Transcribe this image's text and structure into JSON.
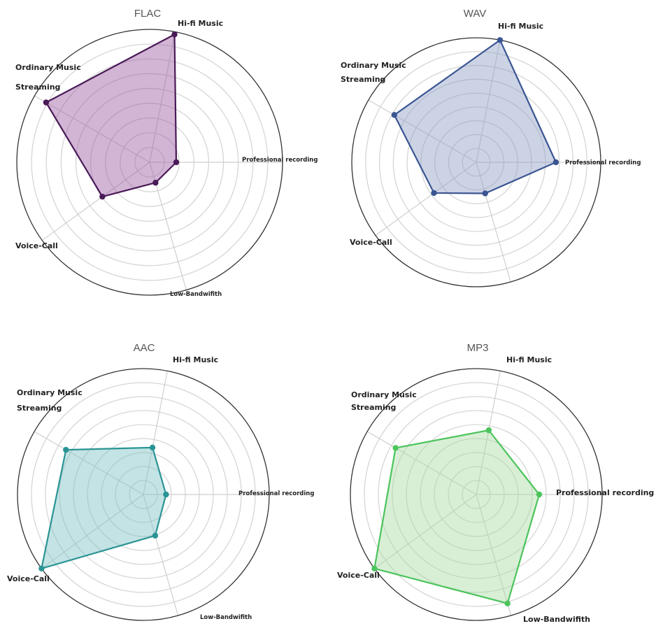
{
  "chart_data": [
    {
      "type": "radar",
      "title": "FLAC",
      "axes": [
        "Professional recording",
        "Hi-fi Music",
        "Ordinary Music Streaming",
        "Voice-Call",
        "Low-Bandwifith"
      ],
      "rlim": [
        0,
        10
      ],
      "rings": 8,
      "values": [
        2.0,
        9.8,
        9.0,
        4.4,
        1.6
      ],
      "color": "#4a1a58",
      "fill": "#9b5aa0"
    },
    {
      "type": "radar",
      "title": "WAV",
      "axes": [
        "Professional recording",
        "Hi-fi Music",
        "Ordinary Music Streaming",
        "Voice-Call",
        "Low-Bandwifith"
      ],
      "rlim": [
        0,
        10
      ],
      "rings": 8,
      "values": [
        6.4,
        10.0,
        7.6,
        4.2,
        2.6
      ],
      "color": "#3a5592",
      "fill": "#8d9ec6"
    },
    {
      "type": "radar",
      "title": "AAC",
      "axes": [
        "Professional recording",
        "Hi-fi Music",
        "Ordinary Music Streaming",
        "Voice-Call",
        "Low-Bandwifith"
      ],
      "rlim": [
        0,
        10
      ],
      "rings": 8,
      "values": [
        1.8,
        3.8,
        7.1,
        10.0,
        3.4
      ],
      "color": "#2a9494",
      "fill": "#7cc1c6"
    },
    {
      "type": "radar",
      "title": "MP3",
      "axes": [
        "Professional recording",
        "Hi-fi Music",
        "Ordinary Music Streaming",
        "Voice-Call",
        "Low-Bandwifith"
      ],
      "rlim": [
        0,
        10
      ],
      "rings": 8,
      "values": [
        5.0,
        5.2,
        7.4,
        10.0,
        9.0
      ],
      "color": "#4cc45c",
      "fill": "#a9dca4"
    }
  ]
}
